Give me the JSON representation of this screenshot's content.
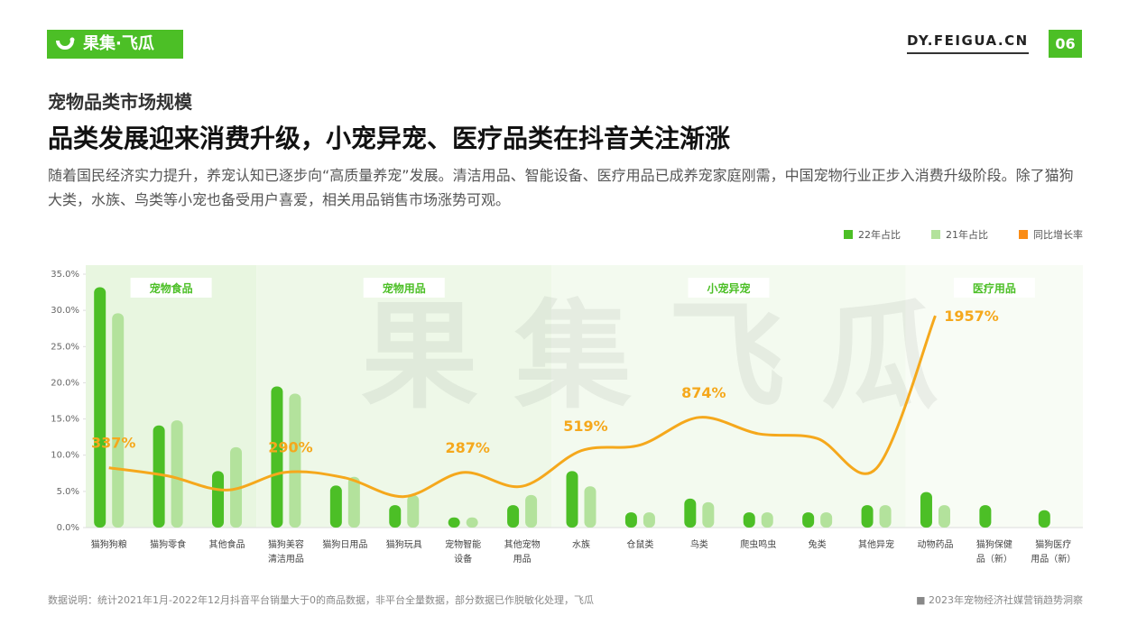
{
  "header": {
    "logo": "果集·飞瓜",
    "site": "DY.FEIGUA.CN",
    "page": "06"
  },
  "subtitle": "宠物品类市场规模",
  "title": "品类发展迎来消费升级，小宠异宠、医疗品类在抖音关注渐涨",
  "description": "随着国民经济实力提升，养宠认知已逐步向“高质量养宠”发展。清洁用品、智能设备、医疗用品已成养宠家庭刚需，中国宠物行业正步入消费升级阶段。除了猫狗大类，水族、鸟类等小宠也备受用户喜爱，相关用品销售市场涨势可观。",
  "chart_data": {
    "type": "bar",
    "watermark": "果集飞瓜",
    "categories": [
      "猫狗狗粮",
      "猫狗零食",
      "其他食品",
      "猫狗美容\n清洁用品",
      "猫狗日用品",
      "猫狗玩具",
      "宠物智能\n设备",
      "其他宠物\n用品",
      "水族",
      "仓鼠类",
      "鸟类",
      "爬虫鸣虫",
      "兔类",
      "其他异宠",
      "动物药品",
      "猫狗保健\n品（新）",
      "猫狗医疗\n用品（新）"
    ],
    "groups": [
      {
        "name": "宠物食品",
        "members": [
          "猫狗狗粮",
          "猫狗零食",
          "其他食品"
        ],
        "color": "#e8f6e0"
      },
      {
        "name": "宠物用品",
        "members": [
          "猫狗美容\n清洁用品",
          "猫狗日用品",
          "猫狗玩具",
          "宠物智能\n设备",
          "其他宠物\n用品"
        ],
        "color": "#eef8e8"
      },
      {
        "name": "小宠异宠",
        "members": [
          "水族",
          "仓鼠类",
          "鸟类",
          "爬虫鸣虫",
          "兔类",
          "其他异宠"
        ],
        "color": "#f3faef"
      },
      {
        "name": "医疗用品",
        "members": [
          "动物药品",
          "猫狗保健\n品（新）",
          "猫狗医疗\n用品（新）"
        ],
        "color": "#f8fcf5"
      }
    ],
    "series": [
      {
        "name": "22年占比",
        "type": "bar",
        "color": "#4cbf26",
        "values": [
          33.2,
          14.1,
          7.8,
          19.5,
          5.8,
          3.1,
          1.4,
          3.1,
          7.8,
          2.1,
          4.0,
          2.1,
          2.1,
          3.1,
          4.9,
          3.1,
          2.4
        ]
      },
      {
        "name": "21年占比",
        "type": "bar",
        "color": "#b3e29c",
        "values": [
          29.6,
          14.8,
          11.1,
          18.5,
          7.0,
          4.5,
          1.4,
          4.5,
          5.7,
          2.1,
          3.5,
          2.1,
          2.1,
          3.1,
          3.1,
          null,
          null
        ]
      },
      {
        "name": "同比增长率",
        "type": "line",
        "axis": "y2",
        "color": "#f5a81c",
        "legend_color": "#fa8c16",
        "values": [
          337,
          250,
          100,
          290,
          230,
          30,
          287,
          140,
          519,
          580,
          874,
          700,
          650,
          330,
          1957,
          null,
          null
        ],
        "value_labels": [
          "337%",
          null,
          null,
          "290%",
          null,
          null,
          "287%",
          null,
          "519%",
          null,
          "874%",
          null,
          null,
          null,
          "1957%",
          null,
          null
        ]
      }
    ],
    "ylim": [
      0,
      35
    ],
    "yticks": [
      {
        "value": 0,
        "label": "0.0%"
      },
      {
        "value": 5,
        "label": "5.0%"
      },
      {
        "value": 10,
        "label": "10.0%"
      },
      {
        "value": 15,
        "label": "15.0%"
      },
      {
        "value": 20,
        "label": "20.0%"
      },
      {
        "value": 25,
        "label": "25.0%"
      },
      {
        "value": 30,
        "label": "30.0%"
      },
      {
        "value": 35,
        "label": "35.0%"
      }
    ],
    "y2lim": [
      -300,
      2400
    ],
    "legend": "top-right"
  },
  "footer": {
    "note": "数据说明：统计2021年1月-2022年12月抖音平台销量大于0的商品数据，非平台全量数据，部分数据已作脱敏化处理，飞瓜",
    "report": "■ 2023年宠物经济社媒营销趋势洞察"
  }
}
